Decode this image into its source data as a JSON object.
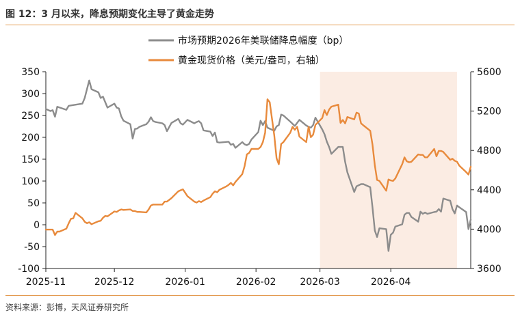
{
  "figure": {
    "title": "图 12：3 月以来，降息预期变化主导了黄金走势",
    "source": "资料来源：彭博，天风证券研究所"
  },
  "chart_data": {
    "type": "line",
    "x_tick_labels": [
      "2025-11",
      "2025-12",
      "2026-01",
      "2026-02",
      "2026-03",
      "2026-04"
    ],
    "y_left": {
      "range": [
        -100,
        350
      ],
      "ticks": [
        350,
        300,
        250,
        200,
        150,
        100,
        50,
        0,
        -50,
        -100
      ]
    },
    "y_right": {
      "range": [
        3600,
        5600
      ],
      "ticks": [
        5600,
        5200,
        4800,
        4400,
        4000,
        3600
      ]
    },
    "shaded_period": {
      "from": "2026-03-01",
      "to": "2026-04-30",
      "color": "#fbece3"
    },
    "legend_position": "top-center",
    "series": [
      {
        "name": "市场预期2026年美联储降息幅度（bp）",
        "axis": "left",
        "color": "#8c8c8c",
        "points": [
          [
            "2025-11-01",
            265
          ],
          [
            "2025-11-03",
            260
          ],
          [
            "2025-11-04",
            262
          ],
          [
            "2025-11-05",
            247
          ],
          [
            "2025-11-06",
            270
          ],
          [
            "2025-11-10",
            263
          ],
          [
            "2025-11-11",
            272
          ],
          [
            "2025-11-12",
            273
          ],
          [
            "2025-11-17",
            277
          ],
          [
            "2025-11-18",
            290
          ],
          [
            "2025-11-20",
            330
          ],
          [
            "2025-11-21",
            310
          ],
          [
            "2025-11-24",
            303
          ],
          [
            "2025-11-25",
            290
          ],
          [
            "2025-11-26",
            293
          ],
          [
            "2025-11-28",
            268
          ],
          [
            "2025-12-01",
            277
          ],
          [
            "2025-12-02",
            268
          ],
          [
            "2025-12-03",
            266
          ],
          [
            "2025-12-04",
            248
          ],
          [
            "2025-12-05",
            238
          ],
          [
            "2025-12-08",
            230
          ],
          [
            "2025-12-09",
            197
          ],
          [
            "2025-12-10",
            219
          ],
          [
            "2025-12-11",
            220
          ],
          [
            "2025-12-12",
            224
          ],
          [
            "2025-12-15",
            230
          ],
          [
            "2025-12-16",
            236
          ],
          [
            "2025-12-17",
            246
          ],
          [
            "2025-12-18",
            237
          ],
          [
            "2025-12-19",
            235
          ],
          [
            "2025-12-22",
            232
          ],
          [
            "2025-12-23",
            228
          ],
          [
            "2025-12-24",
            214
          ],
          [
            "2025-12-26",
            233
          ],
          [
            "2025-12-29",
            242
          ],
          [
            "2025-12-30",
            232
          ],
          [
            "2025-12-31",
            229
          ],
          [
            "2026-01-02",
            240
          ],
          [
            "2026-01-05",
            232
          ],
          [
            "2026-01-06",
            235
          ],
          [
            "2026-01-07",
            237
          ],
          [
            "2026-01-08",
            232
          ],
          [
            "2026-01-09",
            216
          ],
          [
            "2026-01-12",
            213
          ],
          [
            "2026-01-13",
            203
          ],
          [
            "2026-01-14",
            211
          ],
          [
            "2026-01-15",
            189
          ],
          [
            "2026-01-16",
            188
          ],
          [
            "2026-01-20",
            190
          ],
          [
            "2026-01-21",
            183
          ],
          [
            "2026-01-22",
            185
          ],
          [
            "2026-01-23",
            176
          ],
          [
            "2026-01-26",
            189
          ],
          [
            "2026-01-27",
            184
          ],
          [
            "2026-01-28",
            182
          ],
          [
            "2026-01-29",
            185
          ],
          [
            "2026-01-30",
            195
          ],
          [
            "2026-02-02",
            212
          ],
          [
            "2026-02-03",
            238
          ],
          [
            "2026-02-04",
            228
          ],
          [
            "2026-02-05",
            237
          ],
          [
            "2026-02-06",
            222
          ],
          [
            "2026-02-09",
            215
          ],
          [
            "2026-02-10",
            225
          ],
          [
            "2026-02-11",
            228
          ],
          [
            "2026-02-12",
            252
          ],
          [
            "2026-02-13",
            250
          ],
          [
            "2026-02-16",
            236
          ],
          [
            "2026-02-17",
            231
          ],
          [
            "2026-02-18",
            226
          ],
          [
            "2026-02-19",
            233
          ],
          [
            "2026-02-20",
            240
          ],
          [
            "2026-02-23",
            227
          ],
          [
            "2026-02-24",
            224
          ],
          [
            "2026-02-25",
            222
          ],
          [
            "2026-02-26",
            228
          ],
          [
            "2026-02-27",
            245
          ],
          [
            "2026-03-02",
            218
          ],
          [
            "2026-03-03",
            207
          ],
          [
            "2026-03-04",
            190
          ],
          [
            "2026-03-05",
            178
          ],
          [
            "2026-03-06",
            162
          ],
          [
            "2026-03-09",
            178
          ],
          [
            "2026-03-10",
            178
          ],
          [
            "2026-03-11",
            178
          ],
          [
            "2026-03-12",
            144
          ],
          [
            "2026-03-13",
            120
          ],
          [
            "2026-03-16",
            75
          ],
          [
            "2026-03-17",
            88
          ],
          [
            "2026-03-19",
            93
          ],
          [
            "2026-03-20",
            93
          ],
          [
            "2026-03-23",
            86
          ],
          [
            "2026-03-24",
            40
          ],
          [
            "2026-03-25",
            -13
          ],
          [
            "2026-03-26",
            -28
          ],
          [
            "2026-03-27",
            -8
          ],
          [
            "2026-03-30",
            -10
          ],
          [
            "2026-03-31",
            -60
          ],
          [
            "2026-04-01",
            -23
          ],
          [
            "2026-04-02",
            -18
          ],
          [
            "2026-04-03",
            -4
          ],
          [
            "2026-04-06",
            1
          ],
          [
            "2026-04-07",
            23
          ],
          [
            "2026-04-08",
            27
          ],
          [
            "2026-04-09",
            27
          ],
          [
            "2026-04-10",
            18
          ],
          [
            "2026-04-13",
            7
          ],
          [
            "2026-04-14",
            30
          ],
          [
            "2026-04-15",
            25
          ],
          [
            "2026-04-16",
            28
          ],
          [
            "2026-04-17",
            25
          ],
          [
            "2026-04-20",
            29
          ],
          [
            "2026-04-21",
            30
          ],
          [
            "2026-04-22",
            36
          ],
          [
            "2026-04-23",
            30
          ],
          [
            "2026-04-24",
            60
          ],
          [
            "2026-04-27",
            55
          ],
          [
            "2026-04-28",
            36
          ],
          [
            "2026-04-29",
            26
          ],
          [
            "2026-04-30",
            44
          ],
          [
            "2026-05-01",
            40
          ],
          [
            "2026-05-04",
            29
          ],
          [
            "2026-05-05",
            -10
          ],
          [
            "2026-05-06",
            12
          ]
        ]
      },
      {
        "name": "黄金现货价格（美元/盎司，右轴）",
        "axis": "right",
        "color": "#e88a3c",
        "points": [
          [
            "2025-11-01",
            3995
          ],
          [
            "2025-11-04",
            3995
          ],
          [
            "2025-11-05",
            3940
          ],
          [
            "2025-11-06",
            3975
          ],
          [
            "2025-11-07",
            3975
          ],
          [
            "2025-11-10",
            4005
          ],
          [
            "2025-11-11",
            4060
          ],
          [
            "2025-11-12",
            4105
          ],
          [
            "2025-11-13",
            4110
          ],
          [
            "2025-11-14",
            4165
          ],
          [
            "2025-11-17",
            4110
          ],
          [
            "2025-11-18",
            4075
          ],
          [
            "2025-11-19",
            4060
          ],
          [
            "2025-11-20",
            4070
          ],
          [
            "2025-11-21",
            4050
          ],
          [
            "2025-11-24",
            4080
          ],
          [
            "2025-11-25",
            4085
          ],
          [
            "2025-11-26",
            4115
          ],
          [
            "2025-11-27",
            4135
          ],
          [
            "2025-11-28",
            4130
          ],
          [
            "2025-12-01",
            4180
          ],
          [
            "2025-12-02",
            4175
          ],
          [
            "2025-12-03",
            4190
          ],
          [
            "2025-12-04",
            4200
          ],
          [
            "2025-12-05",
            4195
          ],
          [
            "2025-12-08",
            4200
          ],
          [
            "2025-12-09",
            4185
          ],
          [
            "2025-12-10",
            4185
          ],
          [
            "2025-12-11",
            4175
          ],
          [
            "2025-12-12",
            4175
          ],
          [
            "2025-12-15",
            4170
          ],
          [
            "2025-12-16",
            4200
          ],
          [
            "2025-12-17",
            4240
          ],
          [
            "2025-12-18",
            4250
          ],
          [
            "2025-12-19",
            4250
          ],
          [
            "2025-12-22",
            4250
          ],
          [
            "2025-12-23",
            4280
          ],
          [
            "2025-12-24",
            4280
          ],
          [
            "2025-12-26",
            4315
          ],
          [
            "2025-12-29",
            4385
          ],
          [
            "2025-12-30",
            4395
          ],
          [
            "2025-12-31",
            4405
          ],
          [
            "2026-01-02",
            4335
          ],
          [
            "2026-01-05",
            4280
          ],
          [
            "2026-01-06",
            4270
          ],
          [
            "2026-01-07",
            4285
          ],
          [
            "2026-01-08",
            4275
          ],
          [
            "2026-01-09",
            4290
          ],
          [
            "2026-01-12",
            4325
          ],
          [
            "2026-01-13",
            4360
          ],
          [
            "2026-01-14",
            4385
          ],
          [
            "2026-01-15",
            4375
          ],
          [
            "2026-01-16",
            4400
          ],
          [
            "2026-01-19",
            4435
          ],
          [
            "2026-01-20",
            4450
          ],
          [
            "2026-01-21",
            4470
          ],
          [
            "2026-01-22",
            4445
          ],
          [
            "2026-01-23",
            4480
          ],
          [
            "2026-01-26",
            4560
          ],
          [
            "2026-01-27",
            4640
          ],
          [
            "2026-01-28",
            4760
          ],
          [
            "2026-01-29",
            4775
          ],
          [
            "2026-01-30",
            4815
          ],
          [
            "2026-02-02",
            4815
          ],
          [
            "2026-02-03",
            4835
          ],
          [
            "2026-02-04",
            4885
          ],
          [
            "2026-02-05",
            4980
          ],
          [
            "2026-02-06",
            5320
          ],
          [
            "2026-02-07",
            5290
          ],
          [
            "2026-02-09",
            4950
          ],
          [
            "2026-02-10",
            4720
          ],
          [
            "2026-02-11",
            4660
          ],
          [
            "2026-02-12",
            4865
          ],
          [
            "2026-02-13",
            4885
          ],
          [
            "2026-02-16",
            4980
          ],
          [
            "2026-02-17",
            5040
          ],
          [
            "2026-02-18",
            5010
          ],
          [
            "2026-02-19",
            5040
          ],
          [
            "2026-02-20",
            4940
          ],
          [
            "2026-02-23",
            4885
          ],
          [
            "2026-02-24",
            5040
          ],
          [
            "2026-02-25",
            4935
          ],
          [
            "2026-02-26",
            4960
          ],
          [
            "2026-02-27",
            5060
          ],
          [
            "2026-03-02",
            5130
          ],
          [
            "2026-03-03",
            5210
          ],
          [
            "2026-03-04",
            5160
          ],
          [
            "2026-03-05",
            5215
          ],
          [
            "2026-03-06",
            5245
          ],
          [
            "2026-03-09",
            5265
          ],
          [
            "2026-03-10",
            5080
          ],
          [
            "2026-03-11",
            5110
          ],
          [
            "2026-03-12",
            5075
          ],
          [
            "2026-03-13",
            5140
          ],
          [
            "2026-03-16",
            5115
          ],
          [
            "2026-03-17",
            5185
          ],
          [
            "2026-03-18",
            5175
          ],
          [
            "2026-03-19",
            5075
          ],
          [
            "2026-03-20",
            5055
          ],
          [
            "2026-03-23",
            5000
          ],
          [
            "2026-03-24",
            4860
          ],
          [
            "2026-03-25",
            4650
          ],
          [
            "2026-03-26",
            4500
          ],
          [
            "2026-03-27",
            4490
          ],
          [
            "2026-03-30",
            4390
          ],
          [
            "2026-03-31",
            4505
          ],
          [
            "2026-04-01",
            4495
          ],
          [
            "2026-04-02",
            4490
          ],
          [
            "2026-04-03",
            4515
          ],
          [
            "2026-04-06",
            4660
          ],
          [
            "2026-04-07",
            4730
          ],
          [
            "2026-04-08",
            4690
          ],
          [
            "2026-04-09",
            4680
          ],
          [
            "2026-04-10",
            4685
          ],
          [
            "2026-04-13",
            4760
          ],
          [
            "2026-04-14",
            4755
          ],
          [
            "2026-04-15",
            4755
          ],
          [
            "2026-04-16",
            4730
          ],
          [
            "2026-04-17",
            4730
          ],
          [
            "2026-04-20",
            4815
          ],
          [
            "2026-04-21",
            4740
          ],
          [
            "2026-04-22",
            4795
          ],
          [
            "2026-04-23",
            4795
          ],
          [
            "2026-04-24",
            4785
          ],
          [
            "2026-04-27",
            4705
          ],
          [
            "2026-04-28",
            4715
          ],
          [
            "2026-04-29",
            4695
          ],
          [
            "2026-04-30",
            4685
          ],
          [
            "2026-05-01",
            4645
          ],
          [
            "2026-05-04",
            4580
          ],
          [
            "2026-05-05",
            4555
          ],
          [
            "2026-05-06",
            4635
          ]
        ]
      }
    ]
  }
}
